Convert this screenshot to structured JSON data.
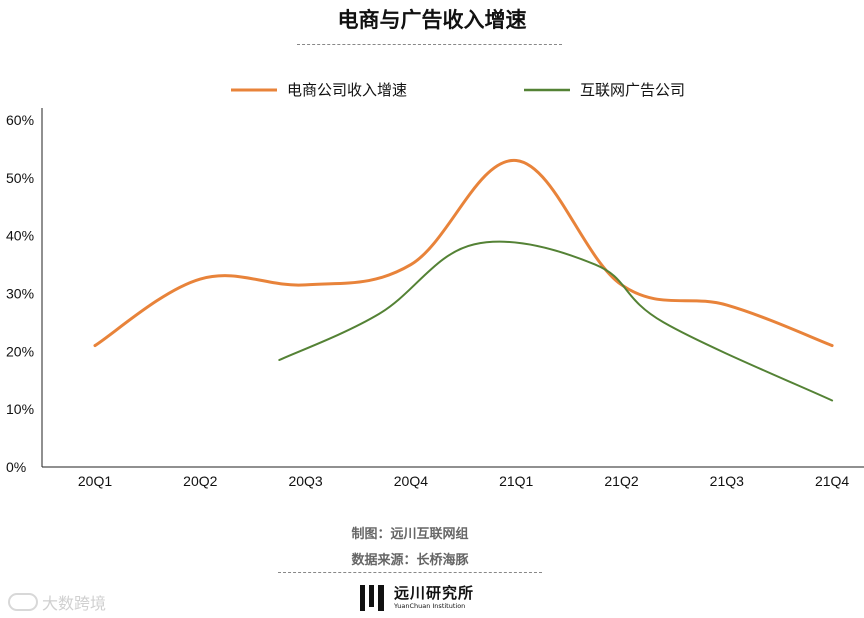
{
  "title": "电商与广告收入增速",
  "chart_data": {
    "type": "line",
    "title": "电商与广告收入增速",
    "categories": [
      "20Q1",
      "20Q2",
      "20Q3",
      "20Q4",
      "21Q1",
      "21Q2",
      "21Q3",
      "21Q4"
    ],
    "yticks": [
      "60%",
      "50%",
      "40%",
      "30%",
      "20%",
      "10%",
      "0%"
    ],
    "ylim": [
      0,
      60
    ],
    "xlabel": "",
    "ylabel": "",
    "legend_position": "top-center",
    "grid": false,
    "series": [
      {
        "name": "电商公司收入增速",
        "color": "#e8833a",
        "points": [
          [
            0,
            21
          ],
          [
            1,
            32.5
          ],
          [
            2,
            31.5
          ],
          [
            3,
            35
          ],
          [
            4,
            53
          ],
          [
            5,
            31.5
          ],
          [
            6,
            28
          ],
          [
            7,
            21
          ]
        ]
      },
      {
        "name": "互联网广告公司",
        "color": "#548235",
        "points": [
          [
            1.75,
            18.5
          ],
          [
            2.7,
            26.5
          ],
          [
            3.6,
            38.5
          ],
          [
            4.75,
            35
          ],
          [
            5.4,
            25
          ],
          [
            7,
            11.5
          ]
        ]
      }
    ]
  },
  "footer": {
    "maker": "制图：远川互联网组",
    "source": "数据来源：长桥海豚"
  },
  "logo": {
    "name_cn": "远川研究所",
    "name_en": "YuanChuan Institution"
  },
  "watermark": "大数跨境"
}
